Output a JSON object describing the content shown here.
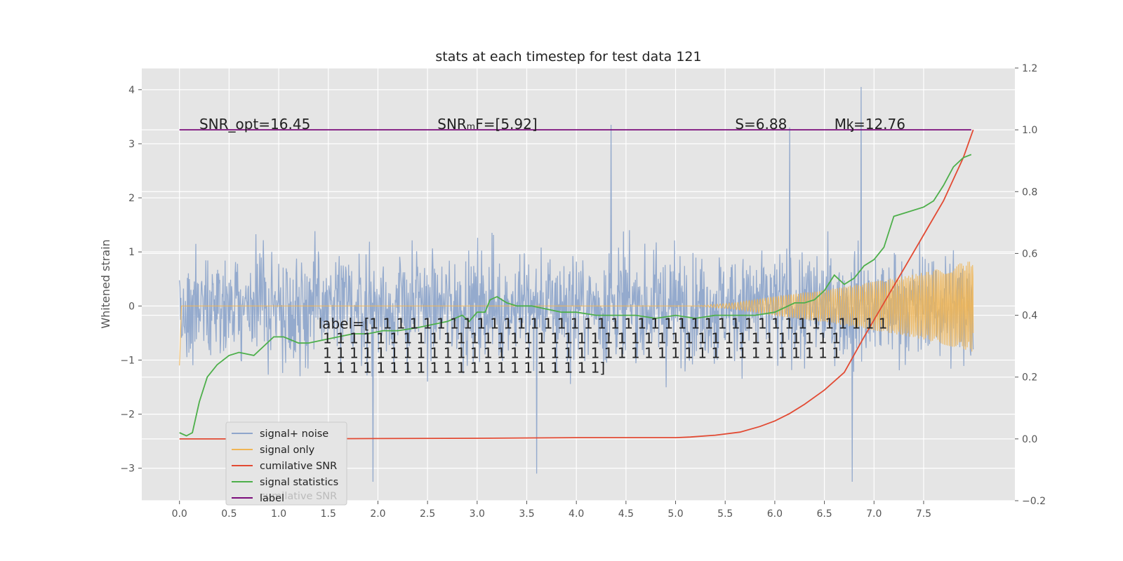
{
  "chart_data": {
    "type": "line",
    "title": "stats at each timestep for test data 121",
    "ylabel": "Whitened strain",
    "xlabel": "",
    "xlim": [
      -0.38,
      8.42
    ],
    "ylim": [
      -3.6,
      4.4
    ],
    "y2lim": [
      -0.2,
      1.2
    ],
    "grid": true,
    "legend_position": "lower-left",
    "x_ticks": [
      0.0,
      0.5,
      1.0,
      1.5,
      2.0,
      2.5,
      3.0,
      3.5,
      4.0,
      4.5,
      5.0,
      5.5,
      6.0,
      6.5,
      7.0,
      7.5
    ],
    "x_tick_labels": [
      "0.0",
      "0.5",
      "1.0",
      "1.5",
      "2.0",
      "2.5",
      "3.0",
      "3.5",
      "4.0",
      "4.5",
      "5.0",
      "5.5",
      "6.0",
      "6.5",
      "7.0",
      "7.5"
    ],
    "y_ticks": [
      4,
      3,
      2,
      1,
      0,
      -1,
      -2,
      -3
    ],
    "y_tick_labels": [
      "4",
      "3",
      "2",
      "1",
      "0",
      "−1",
      "−2",
      "−3"
    ],
    "y2_ticks": [
      1.2,
      1.0,
      0.8,
      0.6,
      0.4,
      0.2,
      0.0,
      -0.2
    ],
    "y2_tick_labels": [
      "1.2",
      "1.0",
      "0.8",
      "0.6",
      "0.4",
      "0.2",
      "0.0",
      "−0.2"
    ],
    "colors": {
      "signal_noise": "#8fa6cb",
      "signal_only": "#f0b554",
      "cumulative_snr": "#e24a33",
      "signal_statistics": "#4daf4a",
      "label": "#7b0d7b",
      "plot_bg": "#e5e5e5",
      "grid": "#ffffff"
    },
    "series": [
      {
        "name": "signal+ noise",
        "axis": "left",
        "x_range": [
          0.0,
          8.0
        ],
        "value_range": [
          -3.25,
          4.05
        ],
        "notable_peaks": [
          [
            4.35,
            3.35
          ],
          [
            6.15,
            3.3
          ],
          [
            6.87,
            4.05
          ],
          [
            1.95,
            -3.25
          ],
          [
            6.78,
            -3.25
          ],
          [
            3.6,
            -3.1
          ]
        ]
      },
      {
        "name": "signal only",
        "axis": "left",
        "x": [
          0.0,
          0.02,
          5.2,
          5.6,
          6.0,
          6.5,
          7.0,
          7.5,
          8.0
        ],
        "amplitude": [
          1.1,
          0.0,
          0.0,
          0.06,
          0.18,
          0.3,
          0.45,
          0.62,
          0.85
        ]
      },
      {
        "name": "cumilative SNR",
        "axis": "right",
        "x": [
          0.0,
          1.0,
          2.0,
          3.0,
          4.0,
          5.0,
          5.15,
          5.4,
          5.65,
          5.85,
          6.0,
          6.15,
          6.3,
          6.5,
          6.7,
          6.9,
          7.1,
          7.3,
          7.5,
          7.7,
          7.9,
          8.0
        ],
        "y": [
          0.0,
          0.0,
          0.001,
          0.002,
          0.004,
          0.004,
          0.006,
          0.012,
          0.022,
          0.04,
          0.058,
          0.082,
          0.112,
          0.158,
          0.215,
          0.33,
          0.44,
          0.55,
          0.66,
          0.77,
          0.91,
          1.0
        ]
      },
      {
        "name": "signal statistics",
        "axis": "right",
        "x": [
          0.0,
          0.07,
          0.13,
          0.2,
          0.28,
          0.38,
          0.5,
          0.6,
          0.75,
          0.85,
          0.95,
          1.05,
          1.2,
          1.3,
          1.45,
          1.6,
          1.75,
          1.9,
          2.05,
          2.2,
          2.4,
          2.55,
          2.7,
          2.85,
          2.92,
          3.0,
          3.08,
          3.13,
          3.2,
          3.3,
          3.4,
          3.55,
          3.7,
          3.85,
          4.0,
          4.2,
          4.4,
          4.6,
          4.8,
          5.0,
          5.2,
          5.4,
          5.6,
          5.8,
          6.0,
          6.2,
          6.3,
          6.4,
          6.5,
          6.6,
          6.7,
          6.8,
          6.9,
          7.0,
          7.1,
          7.2,
          7.3,
          7.5,
          7.6,
          7.7,
          7.8,
          7.9,
          7.98
        ],
        "y": [
          0.02,
          0.01,
          0.02,
          0.12,
          0.2,
          0.24,
          0.27,
          0.28,
          0.27,
          0.3,
          0.33,
          0.33,
          0.31,
          0.31,
          0.32,
          0.33,
          0.34,
          0.34,
          0.35,
          0.35,
          0.36,
          0.37,
          0.38,
          0.4,
          0.38,
          0.41,
          0.41,
          0.45,
          0.46,
          0.44,
          0.43,
          0.43,
          0.42,
          0.41,
          0.41,
          0.4,
          0.4,
          0.4,
          0.39,
          0.4,
          0.39,
          0.4,
          0.4,
          0.4,
          0.41,
          0.44,
          0.44,
          0.45,
          0.48,
          0.53,
          0.5,
          0.52,
          0.56,
          0.58,
          0.62,
          0.72,
          0.73,
          0.75,
          0.77,
          0.82,
          0.88,
          0.91,
          0.92
        ]
      },
      {
        "name": "label",
        "axis": "right",
        "x": [
          0.0,
          7.98
        ],
        "y": [
          1.0,
          1.0
        ]
      }
    ],
    "annotations": [
      {
        "text": "SNR_opt=16.45",
        "x": 0.2,
        "y": 3.35
      },
      {
        "text": "SNRₘF=[5.92]",
        "x": 2.6,
        "y": 3.35
      },
      {
        "text": "S=6.88",
        "x": 5.6,
        "y": 3.35
      },
      {
        "text": "Mᶄ=12.76",
        "x": 6.6,
        "y": 3.35
      }
    ],
    "label_text": [
      "label=[1 1 1 1 1 1 1 1 1 1 1 1 1 1 1 1 1 1 1 1 1 1 1 1 1 1 1 1 1 1 1 1 1 1 1 1 1 1 1",
      " 1 1 1 1 1 1 1 1 1 1 1 1 1 1 1 1 1 1 1 1 1 1 1 1 1 1 1 1 1 1 1 1 1 1 1 1 1 1 1",
      " 1 1 1 1 1 1 1 1 1 1 1 1 1 1 1 1 1 1 1 1 1 1 1 1 1 1 1 1 1 1 1 1 1 1 1 1 1 1 1",
      " 1 1 1 1 1 1 1 1 1 1 1 1 1 1 1 1 1 1 1 1 1]"
    ],
    "legend_residual_text": "cumilative SNR"
  }
}
